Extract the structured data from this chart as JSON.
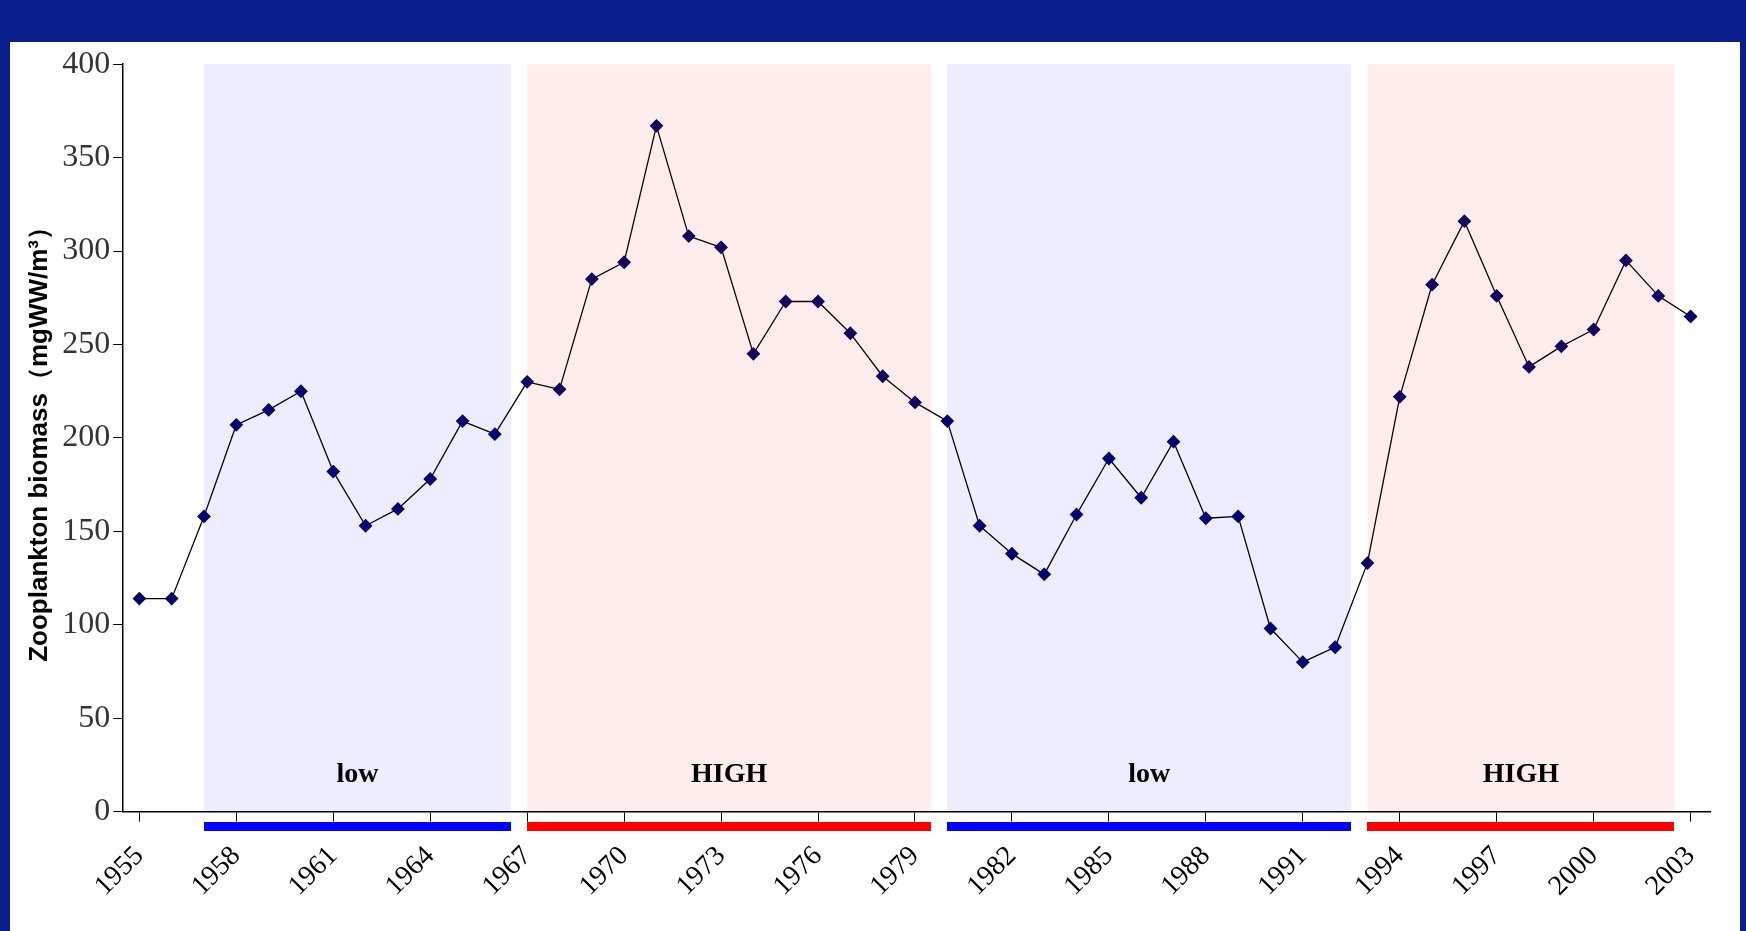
{
  "chart_data": {
    "type": "line",
    "ylabel": "Zooplankton biomass（mgWW/m³）",
    "x": [
      1955,
      1956,
      1957,
      1958,
      1959,
      1960,
      1961,
      1962,
      1963,
      1964,
      1965,
      1966,
      1967,
      1968,
      1969,
      1970,
      1971,
      1972,
      1973,
      1974,
      1975,
      1976,
      1977,
      1978,
      1979,
      1980,
      1981,
      1982,
      1983,
      1984,
      1985,
      1986,
      1987,
      1988,
      1989,
      1990,
      1991,
      1992,
      1993,
      1994,
      1995,
      1996,
      1997,
      1998,
      1999,
      2000,
      2001,
      2002,
      2003
    ],
    "series": [
      {
        "color": "#000066",
        "values": [
          114,
          114,
          158,
          207,
          215,
          225,
          182,
          153,
          162,
          178,
          209,
          202,
          230,
          226,
          285,
          294,
          367,
          308,
          302,
          245,
          273,
          273,
          256,
          233,
          219,
          209,
          153,
          138,
          127,
          159,
          189,
          168,
          198,
          157,
          158,
          98,
          80,
          88,
          133,
          222,
          282,
          316,
          276,
          238,
          249,
          258,
          295,
          276,
          265
        ]
      }
    ],
    "xlim": [
      1954.5,
      2003.6
    ],
    "xticks": [
      1955,
      1958,
      1961,
      1964,
      1967,
      1970,
      1973,
      1976,
      1979,
      1982,
      1985,
      1988,
      1991,
      1994,
      1997,
      2000,
      2003
    ],
    "ylim": [
      0,
      400
    ],
    "yticks": [
      0,
      50,
      100,
      150,
      200,
      250,
      300,
      350,
      400
    ],
    "bands": [
      {
        "axis": "x",
        "from": 1957,
        "to": 1966.5,
        "label": "low",
        "color": "#0000ff"
      },
      {
        "axis": "x",
        "from": 1967,
        "to": 1979.5,
        "label": "HIGH",
        "color": "#ff0000"
      },
      {
        "axis": "x",
        "from": 1980,
        "to": 1992.5,
        "label": "low",
        "color": "#0000ff"
      },
      {
        "axis": "x",
        "from": 1993,
        "to": 2002.5,
        "label": "HIGH",
        "color": "#ff0000"
      }
    ],
    "grid": false,
    "legend": false,
    "marker": "diamond",
    "line_style": "solid"
  }
}
